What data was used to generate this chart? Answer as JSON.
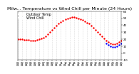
{
  "title": "Milw... Temperature vs Wind Chill per Minute (24 Hours)",
  "legend": [
    "Outdoor Temp",
    "Wind Chill"
  ],
  "outdoor_temp_x": [
    0,
    30,
    60,
    90,
    120,
    150,
    180,
    210,
    240,
    270,
    300,
    330,
    360,
    390,
    420,
    450,
    480,
    510,
    540,
    570,
    600,
    630,
    660,
    690,
    720,
    750,
    780,
    810,
    840,
    870,
    900,
    930,
    960,
    990,
    1020,
    1050,
    1080,
    1110,
    1140,
    1170,
    1200,
    1230,
    1260,
    1290,
    1320,
    1350,
    1380,
    1410,
    1440
  ],
  "outdoor_temp_y": [
    20,
    20,
    20,
    19,
    19,
    19,
    18,
    18,
    18,
    19,
    20,
    21,
    22,
    24,
    27,
    30,
    33,
    36,
    39,
    42,
    45,
    47,
    49,
    50,
    51,
    52,
    52,
    51,
    50,
    49,
    48,
    46,
    44,
    42,
    39,
    36,
    33,
    30,
    27,
    24,
    21,
    18,
    16,
    14,
    13,
    13,
    14,
    16,
    18
  ],
  "wind_chill_x": [
    1230,
    1260,
    1290,
    1320,
    1350,
    1380,
    1410,
    1440
  ],
  "wind_chill_y": [
    14,
    12,
    10,
    9,
    9,
    10,
    12,
    14
  ],
  "xlim": [
    0,
    1440
  ],
  "ylim": [
    -10,
    60
  ],
  "ytick_values": [
    -10,
    0,
    10,
    20,
    30,
    40,
    50,
    60
  ],
  "ytick_labels": [
    "-10",
    "0",
    "10",
    "20",
    "30",
    "40",
    "50",
    "60"
  ],
  "xtick_positions": [
    0,
    60,
    120,
    180,
    240,
    300,
    360,
    420,
    480,
    540,
    600,
    660,
    720,
    780,
    840,
    900,
    960,
    1020,
    1080,
    1140,
    1200,
    1260,
    1320,
    1380,
    1440
  ],
  "xtick_labels": [
    "01\n01",
    "02\n01",
    "03\n01",
    "04\n01",
    "05\n01",
    "06\n01",
    "07\n01",
    "08\n01",
    "09\n01",
    "10\n01",
    "11\n01",
    "12\n01",
    "13\n01",
    "14\n01",
    "15\n01",
    "16\n01",
    "17\n01",
    "18\n01",
    "19\n01",
    "20\n01",
    "21\n01",
    "22\n01",
    "23\n01",
    "24\n01",
    "25\n01"
  ],
  "temp_color": "#ff0000",
  "wind_color": "#0000ff",
  "bg_color": "#ffffff",
  "grid_color": "#bbbbbb",
  "title_fontsize": 4.5,
  "legend_fontsize": 3.5,
  "tick_fontsize": 3.0,
  "marker_size": 1.5
}
